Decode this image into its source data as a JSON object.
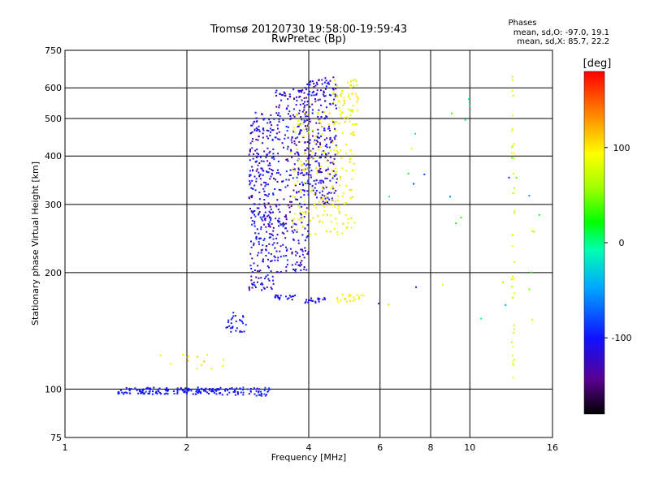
{
  "chart_data": {
    "type": "scatter",
    "title": "Tromsø 20120730 19:58:00-19:59:43",
    "subtitle": "RwPretec (Bp)",
    "xlabel": "Frequency [MHz]",
    "ylabel": "Stationary phase Virtual Height [km]",
    "x_scale": "log",
    "y_scale": "log",
    "xlim": [
      1,
      16
    ],
    "ylim": [
      75,
      750
    ],
    "x_ticks": [
      "1",
      "2",
      "4",
      "6",
      "8",
      "10",
      "16"
    ],
    "y_ticks": [
      "75",
      "100",
      "200",
      "300",
      "400",
      "500",
      "600",
      "750"
    ],
    "x_tick_values": [
      1,
      2,
      4,
      6,
      8,
      10,
      16
    ],
    "y_tick_values": [
      75,
      100,
      200,
      300,
      400,
      500,
      600,
      750
    ],
    "grid": true,
    "stats": {
      "heading": "Phases",
      "line_o": "mean, sd,O: -97.0, 19.1",
      "line_x": "mean, sd,X:  85.7, 22.2"
    },
    "colorbar": {
      "label": "[deg]",
      "ticks": [
        "100",
        "0",
        "-100"
      ],
      "tick_values": [
        100,
        0,
        -100
      ],
      "range": [
        -180,
        180
      ]
    },
    "clusters": [
      {
        "x": [
          1.35,
          2.4
        ],
        "y": [
          97,
          101
        ],
        "phase": [
          -110,
          -90
        ],
        "n": 140
      },
      {
        "x": [
          2.4,
          3.2
        ],
        "y": [
          96,
          101
        ],
        "phase": [
          -120,
          -80
        ],
        "n": 60
      },
      {
        "x": [
          2.85,
          3.3
        ],
        "y": [
          180,
          520
        ],
        "phase": [
          -140,
          -85
        ],
        "n": 320
      },
      {
        "x": [
          3.3,
          4.0
        ],
        "y": [
          200,
          600
        ],
        "phase": [
          -150,
          -85
        ],
        "n": 320
      },
      {
        "x": [
          3.9,
          4.7
        ],
        "y": [
          300,
          640
        ],
        "phase": [
          -140,
          -90
        ],
        "n": 260
      },
      {
        "x": [
          3.6,
          5.2
        ],
        "y": [
          250,
          520
        ],
        "phase": [
          80,
          110
        ],
        "n": 200
      },
      {
        "x": [
          4.6,
          5.3
        ],
        "y": [
          480,
          640
        ],
        "phase": [
          70,
          110
        ],
        "n": 60
      },
      {
        "x": [
          2.5,
          2.8
        ],
        "y": [
          140,
          160
        ],
        "phase": [
          -110,
          -90
        ],
        "n": 30
      },
      {
        "x": [
          3.3,
          3.7
        ],
        "y": [
          170,
          175
        ],
        "phase": [
          -115,
          -100
        ],
        "n": 20
      },
      {
        "x": [
          3.9,
          4.4
        ],
        "y": [
          167,
          172
        ],
        "phase": [
          -115,
          -100
        ],
        "n": 20
      },
      {
        "x": [
          4.7,
          5.6
        ],
        "y": [
          168,
          176
        ],
        "phase": [
          80,
          110
        ],
        "n": 22
      },
      {
        "x": [
          12.7,
          12.9
        ],
        "y": [
          100,
          660
        ],
        "phase": [
          60,
          110
        ],
        "n": 40
      },
      {
        "x": [
          1.7,
          2.5
        ],
        "y": [
          112,
          124
        ],
        "phase": [
          60,
          120
        ],
        "n": 14
      },
      {
        "x": [
          5.8,
          15.0
        ],
        "y": [
          150,
          620
        ],
        "phase": [
          -110,
          110
        ],
        "n": 30
      }
    ]
  }
}
